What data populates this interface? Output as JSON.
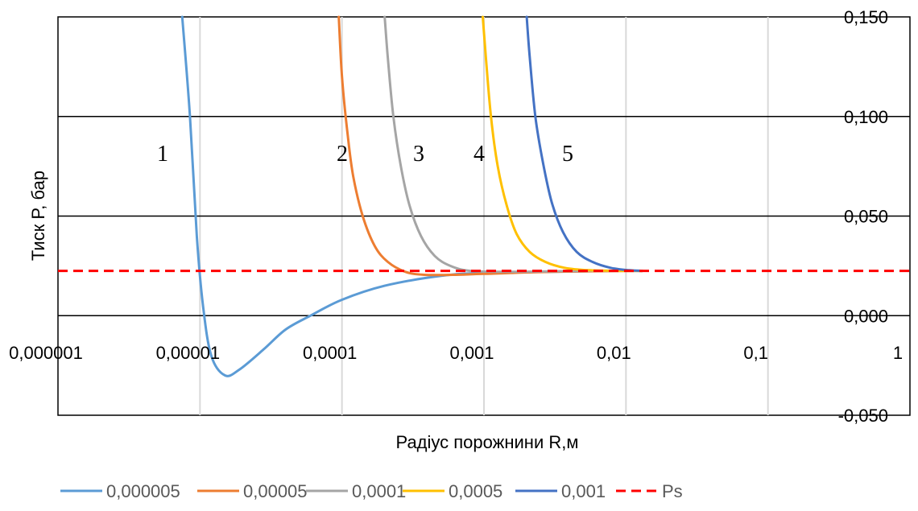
{
  "chart_data": {
    "type": "line",
    "title": "",
    "xlabel": "Радіус порожнини R,м",
    "ylabel": "Тиск P, бар",
    "xscale": "log",
    "xlim": [
      1e-06,
      1
    ],
    "ylim": [
      -0.05,
      0.15
    ],
    "x_tick_labels": [
      "0,000001",
      "0,00001",
      "0,0001",
      "0,001",
      "0,01",
      "0,1",
      "1"
    ],
    "y_tick_labels": [
      "-0,050",
      "0,000",
      "0,050",
      "0,100",
      "0,150"
    ],
    "grid": "horizontal and vertical",
    "legend_position": "bottom",
    "curve_labels": [
      "1",
      "2",
      "3",
      "4",
      "5"
    ],
    "series": [
      {
        "name": "0,000005",
        "color": "#5B9BD5",
        "points": [
          [
            7.5e-06,
            0.15
          ],
          [
            8.5e-06,
            0.1
          ],
          [
            9.5e-06,
            0.04
          ],
          [
            1.05e-05,
            0.005
          ],
          [
            1.2e-05,
            -0.02
          ],
          [
            1.5e-05,
            -0.03
          ],
          [
            1.9e-05,
            -0.027
          ],
          [
            2.8e-05,
            -0.017
          ],
          [
            4e-05,
            -0.007
          ],
          [
            6e-05,
            0.0
          ],
          [
            0.0001,
            0.008
          ],
          [
            0.0002,
            0.015
          ],
          [
            0.0005,
            0.02
          ],
          [
            0.001,
            0.0215
          ],
          [
            0.003,
            0.022
          ],
          [
            0.008,
            0.0225
          ],
          [
            0.013,
            0.0225
          ]
        ]
      },
      {
        "name": "0,00005",
        "color": "#ED7D31",
        "points": [
          [
            9.5e-05,
            0.15
          ],
          [
            0.0001,
            0.12
          ],
          [
            0.00011,
            0.09
          ],
          [
            0.00012,
            0.07
          ],
          [
            0.00014,
            0.05
          ],
          [
            0.00017,
            0.035
          ],
          [
            0.00021,
            0.027
          ],
          [
            0.00028,
            0.022
          ],
          [
            0.00038,
            0.0205
          ],
          [
            0.0006,
            0.0205
          ],
          [
            0.001,
            0.021
          ],
          [
            0.003,
            0.022
          ],
          [
            0.01,
            0.0225
          ],
          [
            0.013,
            0.0225
          ]
        ]
      },
      {
        "name": "0,0001",
        "color": "#A5A5A5",
        "points": [
          [
            0.0002,
            0.15
          ],
          [
            0.00021,
            0.13
          ],
          [
            0.00023,
            0.1
          ],
          [
            0.00026,
            0.075
          ],
          [
            0.0003,
            0.055
          ],
          [
            0.00036,
            0.04
          ],
          [
            0.00045,
            0.03
          ],
          [
            0.00058,
            0.025
          ],
          [
            0.0008,
            0.0225
          ],
          [
            0.0015,
            0.022
          ],
          [
            0.005,
            0.0225
          ],
          [
            0.013,
            0.0225
          ]
        ]
      },
      {
        "name": "0,0005",
        "color": "#FFC000",
        "points": [
          [
            0.00098,
            0.15
          ],
          [
            0.00103,
            0.13
          ],
          [
            0.00112,
            0.1
          ],
          [
            0.00125,
            0.075
          ],
          [
            0.00145,
            0.055
          ],
          [
            0.0017,
            0.041
          ],
          [
            0.0021,
            0.032
          ],
          [
            0.0027,
            0.027
          ],
          [
            0.0037,
            0.024
          ],
          [
            0.0055,
            0.0228
          ],
          [
            0.009,
            0.0225
          ],
          [
            0.013,
            0.0225
          ]
        ]
      },
      {
        "name": "0,001",
        "color": "#4472C4",
        "points": [
          [
            0.002,
            0.15
          ],
          [
            0.0021,
            0.13
          ],
          [
            0.0023,
            0.1
          ],
          [
            0.0026,
            0.077
          ],
          [
            0.003,
            0.057
          ],
          [
            0.0036,
            0.042
          ],
          [
            0.0045,
            0.032
          ],
          [
            0.0058,
            0.027
          ],
          [
            0.0078,
            0.024
          ],
          [
            0.0105,
            0.0228
          ],
          [
            0.013,
            0.0225
          ]
        ]
      },
      {
        "name": "Ps",
        "color": "#FF0000",
        "dashed": true,
        "points": [
          [
            1e-06,
            0.0225
          ],
          [
            1,
            0.0225
          ]
        ]
      }
    ]
  }
}
